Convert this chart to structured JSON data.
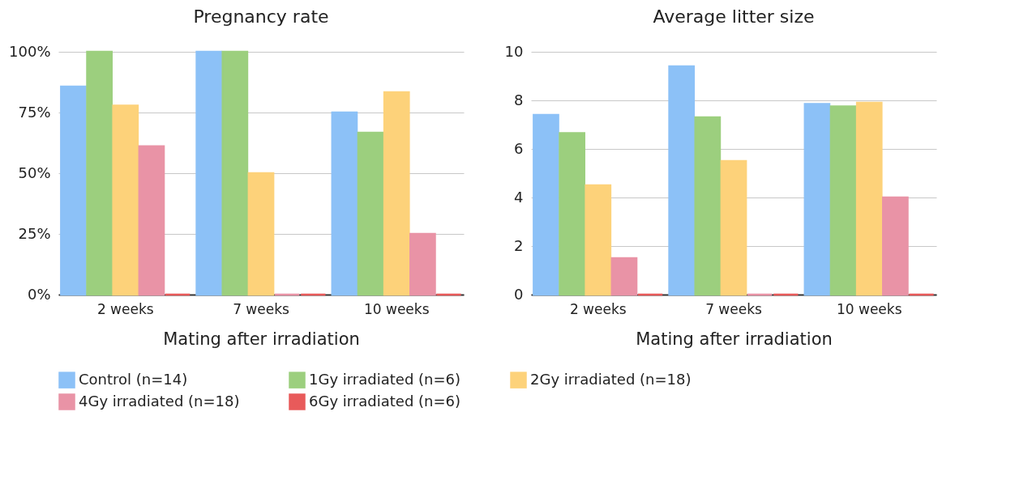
{
  "chart_data": [
    {
      "type": "bar",
      "title": "Pregnancy rate",
      "xlabel": "Mating after irradiation",
      "categories": [
        "2 weeks",
        "7 weeks",
        "10 weeks"
      ],
      "series": [
        {
          "name": "Control (n=14)",
          "color": "#8cc1f7",
          "values": [
            85.7,
            100,
            75
          ]
        },
        {
          "name": "1Gy irradiated (n=6)",
          "color": "#9ccf7e",
          "values": [
            100,
            100,
            66.7
          ]
        },
        {
          "name": "2Gy irradiated (n=18)",
          "color": "#fdd27a",
          "values": [
            77.8,
            50,
            83.3
          ]
        },
        {
          "name": "4Gy irradiated (n=18)",
          "color": "#e993a6",
          "values": [
            61.1,
            0,
            25
          ]
        },
        {
          "name": "6Gy irradiated (n=6)",
          "color": "#e85a5a",
          "values": [
            0,
            0,
            0
          ]
        }
      ],
      "ylim": [
        0,
        100
      ],
      "yticks": [
        {
          "value": 0,
          "label": "0%"
        },
        {
          "value": 25,
          "label": "25%"
        },
        {
          "value": 50,
          "label": "50%"
        },
        {
          "value": 75,
          "label": "75%"
        },
        {
          "value": 100,
          "label": "100%"
        }
      ],
      "grid": "y",
      "legend": "bottom"
    },
    {
      "type": "bar",
      "title": "Average litter size",
      "xlabel": "Mating after irradiation",
      "categories": [
        "2 weeks",
        "7 weeks",
        "10 weeks"
      ],
      "series": [
        {
          "name": "Control (n=14)",
          "color": "#8cc1f7",
          "values": [
            7.4,
            9.4,
            7.85
          ]
        },
        {
          "name": "1Gy irradiated (n=6)",
          "color": "#9ccf7e",
          "values": [
            6.65,
            7.3,
            7.75
          ]
        },
        {
          "name": "2Gy irradiated (n=18)",
          "color": "#fdd27a",
          "values": [
            4.5,
            5.5,
            7.9
          ]
        },
        {
          "name": "4Gy irradiated (n=18)",
          "color": "#e993a6",
          "values": [
            1.5,
            0,
            4
          ]
        },
        {
          "name": "6Gy irradiated (n=6)",
          "color": "#e85a5a",
          "values": [
            0,
            0,
            0
          ]
        }
      ],
      "ylim": [
        0,
        10
      ],
      "yticks": [
        0,
        2,
        4,
        6,
        8,
        10
      ],
      "grid": "y",
      "legend": "bottom"
    }
  ]
}
